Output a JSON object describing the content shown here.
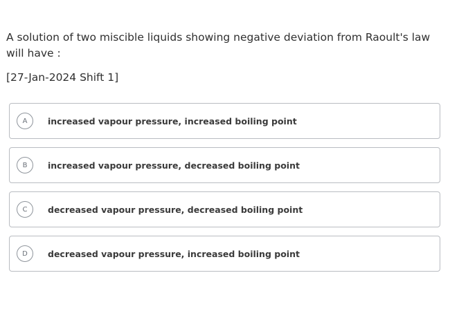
{
  "question": {
    "text": "A solution of two miscible liquids showing negative deviation from Raoult's law will have :",
    "source": "[27-Jan-2024 Shift 1]"
  },
  "options": [
    {
      "letter": "A",
      "text": "increased vapour pressure, increased boiling point"
    },
    {
      "letter": "B",
      "text": "increased vapour pressure, decreased boiling point"
    },
    {
      "letter": "C",
      "text": "decreased vapour pressure, decreased boiling point"
    },
    {
      "letter": "D",
      "text": "decreased vapour pressure, increased boiling point"
    }
  ]
}
